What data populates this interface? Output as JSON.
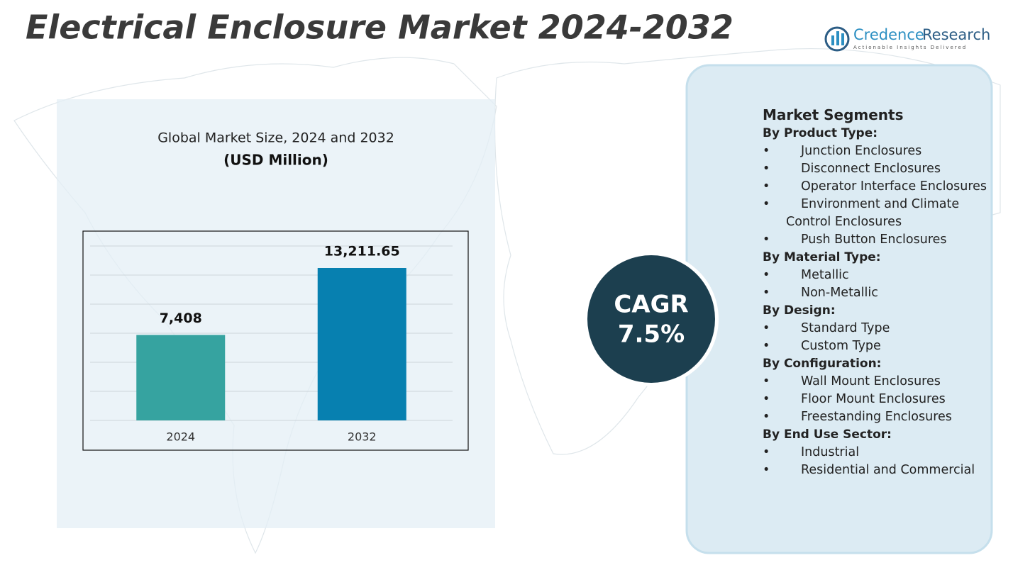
{
  "title": "Electrical Enclosure Market 2024-2032",
  "logo": {
    "brand_first": "Credence",
    "brand_second": "Research",
    "tagline": "Actionable Insights Delivered"
  },
  "chart_data": {
    "type": "bar",
    "title": "Global Market Size, 2024 and 2032",
    "subtitle": "(USD Million)",
    "categories": [
      "2024",
      "2032"
    ],
    "values": [
      7408,
      13211.65
    ],
    "value_labels": [
      "7,408",
      "13,211.65"
    ],
    "colors": [
      "#36a3a0",
      "#0780b0"
    ]
  },
  "cagr": {
    "label": "CAGR",
    "value": "7.5%"
  },
  "segments": {
    "title": "Market Segments",
    "groups": [
      {
        "heading": "By Product Type:",
        "items": [
          "Junction Enclosures",
          "Disconnect Enclosures",
          "Operator Interface Enclosures",
          "Environment and Climate Control Enclosures",
          "Push Button Enclosures"
        ]
      },
      {
        "heading": "By Material Type:",
        "items": [
          "Metallic",
          "Non-Metallic"
        ]
      },
      {
        "heading": "By Design:",
        "items": [
          "Standard Type",
          "Custom Type"
        ]
      },
      {
        "heading": "By Configuration:",
        "items": [
          "Wall Mount Enclosures",
          "Floor Mount Enclosures",
          "Freestanding Enclosures"
        ]
      },
      {
        "heading": "By End Use Sector:",
        "items": [
          "Industrial",
          "Residential and Commercial"
        ]
      }
    ]
  }
}
